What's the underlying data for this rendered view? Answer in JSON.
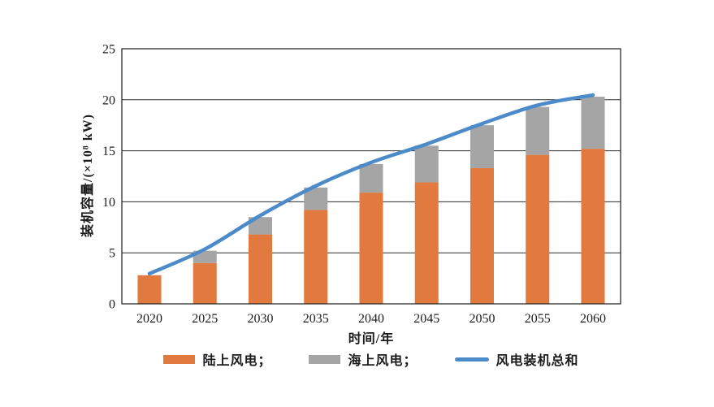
{
  "chart_data": {
    "type": "bar",
    "stacked": true,
    "line_overlay": true,
    "title": "",
    "xlabel": "时间/年",
    "ylabel": "装机容量/(×10⁸ kW)",
    "categories": [
      "2020",
      "2025",
      "2030",
      "2035",
      "2040",
      "2045",
      "2050",
      "2055",
      "2060"
    ],
    "series": [
      {
        "name": "陆上风电",
        "type": "bar",
        "color": "#E2793E",
        "values": [
          2.8,
          4.0,
          6.8,
          9.2,
          10.9,
          11.9,
          13.3,
          14.6,
          15.2
        ]
      },
      {
        "name": "海上风电",
        "type": "bar",
        "color": "#A5A5A5",
        "values": [
          0,
          1.2,
          1.7,
          2.2,
          2.8,
          3.6,
          4.2,
          4.7,
          5.1
        ]
      },
      {
        "name": "风电装机总和",
        "type": "line",
        "color": "#4C8BC9",
        "values": [
          2.8,
          5.2,
          8.5,
          11.4,
          13.7,
          15.5,
          17.5,
          19.3,
          20.3
        ]
      }
    ],
    "ylim": [
      0,
      25
    ],
    "yticks": [
      0,
      5,
      10,
      15,
      20,
      25
    ],
    "grid": "horizontal",
    "grid_color": "#2b2b2b",
    "axis_color": "#2b2b2b",
    "tick_text_color": "#1c1c1c",
    "legend_position": "bottom",
    "legend": [
      {
        "label": "陆上风电；",
        "swatch": "rect",
        "color": "#E2793E"
      },
      {
        "label": "海上风电；",
        "swatch": "rect",
        "color": "#A5A5A5"
      },
      {
        "label": "风电装机总和",
        "swatch": "line",
        "color": "#4C8BC9"
      }
    ]
  }
}
